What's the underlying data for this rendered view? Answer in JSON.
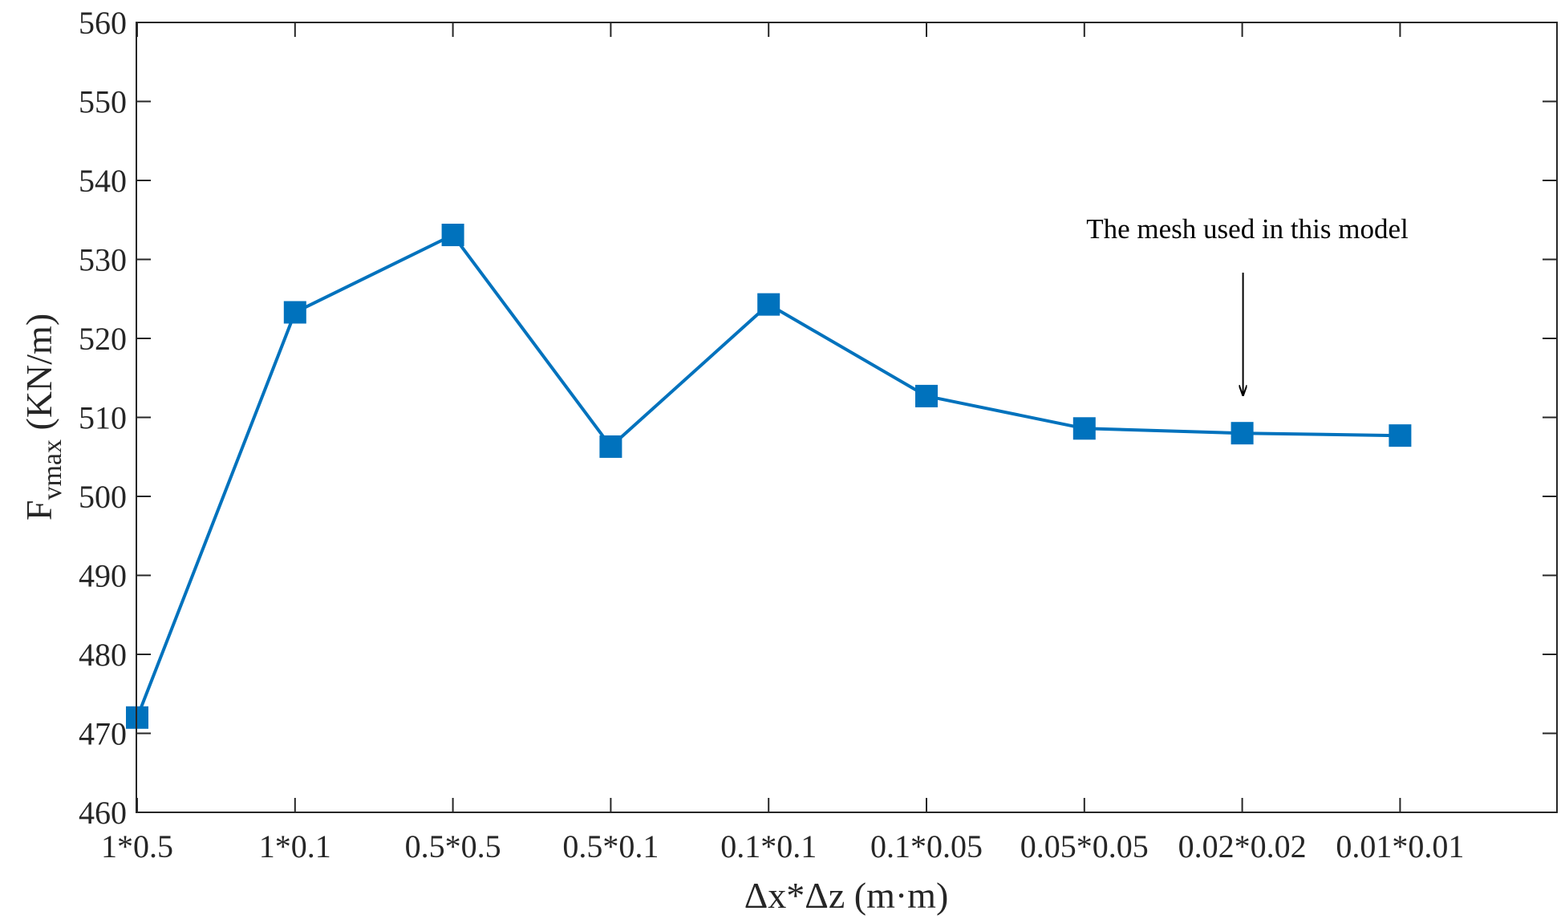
{
  "chart_data": {
    "type": "line",
    "categories": [
      "1*0.5",
      "1*0.1",
      "0.5*0.5",
      "0.5*0.1",
      "0.1*0.1",
      "0.1*0.05",
      "0.05*0.05",
      "0.02*0.02",
      "0.01*0.01"
    ],
    "series": [
      {
        "values": [
          472,
          523.3,
          533.1,
          506.3,
          524.3,
          512.7,
          508.6,
          508.0,
          507.7
        ]
      }
    ],
    "ylim": [
      460,
      560
    ],
    "yticks": [
      "460",
      "470",
      "480",
      "490",
      "500",
      "510",
      "520",
      "530",
      "540",
      "550",
      "560"
    ],
    "ylabel": {
      "main": "F",
      "subscript": "vmax",
      "unit": " (KN/m)"
    },
    "xlabel": "Δx*Δz (m·m)",
    "annotation": {
      "text": "The mesh used in this model",
      "points_to": "0.02*0.02"
    },
    "grid": false,
    "marker": "square",
    "color": "#0072BD"
  }
}
